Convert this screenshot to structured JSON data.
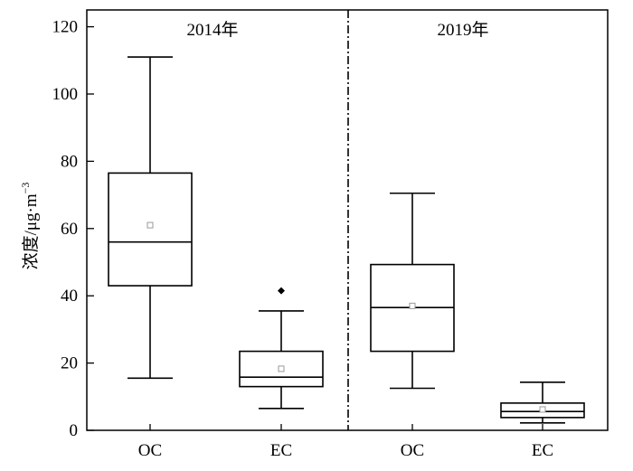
{
  "chart_data": {
    "type": "box",
    "ylabel": "浓度/μg·m",
    "ylabel_superscript": "−3",
    "ylim": [
      0,
      125
    ],
    "yticks": [
      0,
      20,
      40,
      60,
      80,
      100,
      120
    ],
    "panels": [
      {
        "label": "2014年",
        "boxes": [
          {
            "category": "OC",
            "min": 15.5,
            "q1": 43,
            "median": 56,
            "q3": 76.5,
            "max": 111,
            "mean": 61,
            "outliers": []
          },
          {
            "category": "EC",
            "min": 6.5,
            "q1": 13,
            "median": 15.8,
            "q3": 23.5,
            "max": 35.5,
            "mean": 18.3,
            "outliers": [
              41.5
            ]
          }
        ]
      },
      {
        "label": "2019年",
        "boxes": [
          {
            "category": "OC",
            "min": 12.5,
            "q1": 23.5,
            "median": 36.5,
            "q3": 49.3,
            "max": 70.5,
            "mean": 37,
            "outliers": []
          },
          {
            "category": "EC",
            "min": 2.2,
            "q1": 3.8,
            "median": 5.6,
            "q3": 8.1,
            "max": 14.3,
            "mean": 6.2,
            "outliers": []
          }
        ]
      }
    ],
    "colors": {
      "box_fill": "#ffffff",
      "line": "#000000",
      "mean_marker": "#999999"
    }
  }
}
